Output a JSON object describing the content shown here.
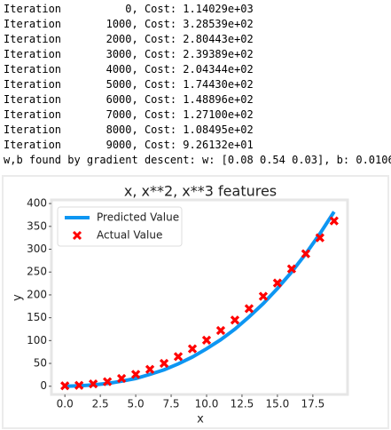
{
  "log": [
    "Iteration          0, Cost: 1.14029e+03",
    "Iteration       1000, Cost: 3.28539e+02",
    "Iteration       2000, Cost: 2.80443e+02",
    "Iteration       3000, Cost: 2.39389e+02",
    "Iteration       4000, Cost: 2.04344e+02",
    "Iteration       5000, Cost: 1.74430e+02",
    "Iteration       6000, Cost: 1.48896e+02",
    "Iteration       7000, Cost: 1.27100e+02",
    "Iteration       8000, Cost: 1.08495e+02",
    "Iteration       9000, Cost: 9.26132e+01",
    "w,b found by gradient descent: w: [0.08 0.54 0.03], b: 0.0106"
  ],
  "chart_data": {
    "type": "line_scatter",
    "title": "x, x**2, x**3 features",
    "xlabel": "x",
    "ylabel": "y",
    "x": [
      0,
      1,
      2,
      3,
      4,
      5,
      6,
      7,
      8,
      9,
      10,
      11,
      12,
      13,
      14,
      15,
      16,
      17,
      18,
      19
    ],
    "series": [
      {
        "name": "Predicted Value",
        "kind": "line",
        "color": "#0d96f2",
        "values": [
          0,
          1,
          3,
          6,
          11,
          17,
          26,
          36,
          49,
          64,
          82,
          102,
          125,
          152,
          181,
          214,
          250,
          290,
          334,
          382
        ]
      },
      {
        "name": "Actual Value",
        "kind": "scatter",
        "color": "#ff0000",
        "values": [
          1,
          2,
          5,
          10,
          17,
          26,
          37,
          50,
          65,
          82,
          101,
          122,
          145,
          170,
          197,
          226,
          257,
          290,
          325,
          362
        ]
      }
    ],
    "xlim": [
      -0.95,
      19.95
    ],
    "xticks": [
      {
        "value": 0,
        "label": "0.0"
      },
      2.5,
      {
        "value": 5,
        "label": "5.0"
      },
      7.5,
      {
        "value": 10,
        "label": "10.0"
      },
      12.5,
      {
        "value": 15,
        "label": "15.0"
      },
      17.5
    ],
    "ylim": [
      -18,
      408
    ],
    "yticks": [
      0,
      50,
      100,
      150,
      200,
      250,
      300,
      350,
      400
    ],
    "legend": "upper left",
    "grid": false
  }
}
